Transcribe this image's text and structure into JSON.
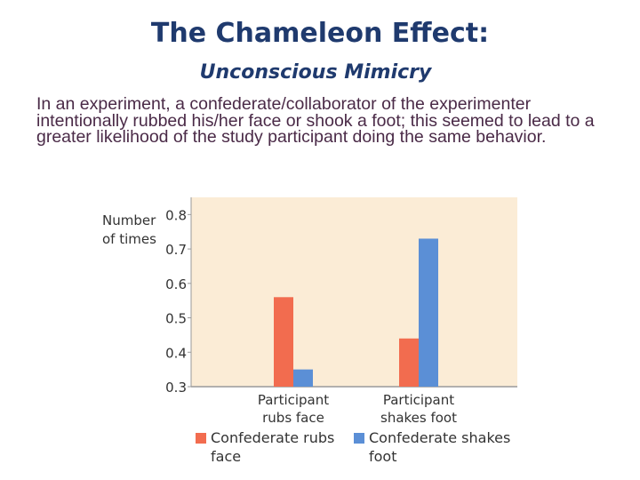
{
  "slide": {
    "title": "The Chameleon Effect:",
    "subtitle": "Unconscious Mimicry",
    "body": "In an experiment, a confederate/collaborator of the experimenter intentionally rubbed his/her face or shook a foot; this seemed to lead to a greater likelihood of the study participant doing the same behavior."
  },
  "chart_data": {
    "type": "bar",
    "categories": [
      "Participant rubs face",
      "Participant shakes foot"
    ],
    "category_lines": [
      [
        "Participant",
        "rubs face"
      ],
      [
        "Participant",
        "shakes foot"
      ]
    ],
    "ylabel_lines": [
      "Number",
      "of times"
    ],
    "ylim": [
      0.3,
      0.85
    ],
    "yticks": [
      0.3,
      0.4,
      0.5,
      0.6,
      0.7,
      0.8
    ],
    "grid": false,
    "legend_position": "bottom",
    "series": [
      {
        "name": "Confederate rubs face",
        "name_lines": [
          "Confederate rubs",
          "face"
        ],
        "color": "#f26c4f",
        "values": [
          0.56,
          0.44
        ]
      },
      {
        "name": "Confederate shakes foot",
        "name_lines": [
          "Confederate shakes",
          "foot"
        ],
        "color": "#5b8fd6",
        "values": [
          0.35,
          0.73
        ]
      }
    ],
    "plot_background": "#fbecd6"
  }
}
